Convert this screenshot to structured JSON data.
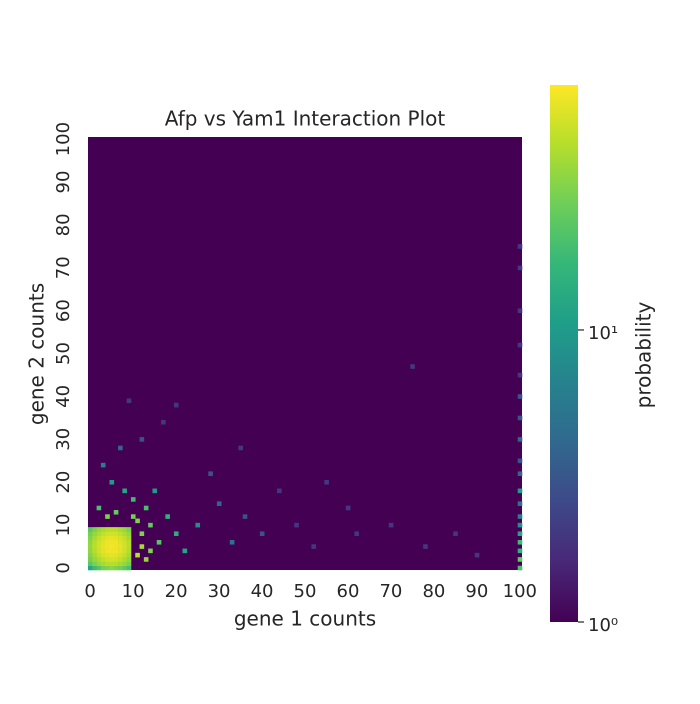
{
  "chart_data": {
    "type": "heatmap",
    "title": "Afp vs Yam1 Interaction Plot",
    "x_label": "gene 1 counts",
    "y_label": "gene 2 counts",
    "colorbar_label": "probability",
    "xlim": [
      -0.5,
      100.5
    ],
    "ylim": [
      -0.5,
      100.5
    ],
    "xticks": [
      0,
      10,
      20,
      30,
      40,
      50,
      60,
      70,
      80,
      90,
      100
    ],
    "yticks": [
      0,
      10,
      20,
      30,
      40,
      50,
      60,
      70,
      80,
      90,
      100
    ],
    "zlim": [
      1,
      69
    ],
    "zscale": "log",
    "zticks": [
      {
        "value": 1,
        "label": "10⁰"
      },
      {
        "value": 10,
        "label": "10¹"
      }
    ],
    "colormap": "viridis",
    "x": [
      0,
      1,
      2,
      3,
      4,
      5,
      6,
      7,
      8,
      9,
      0,
      1,
      2,
      3,
      4,
      5,
      6,
      7,
      8,
      9,
      0,
      1,
      2,
      3,
      4,
      5,
      6,
      7,
      8,
      9,
      0,
      1,
      2,
      3,
      4,
      5,
      6,
      7,
      8,
      9,
      0,
      1,
      2,
      3,
      4,
      5,
      6,
      7,
      8,
      9,
      0,
      1,
      2,
      3,
      4,
      5,
      6,
      7,
      8,
      9,
      0,
      1,
      2,
      3,
      4,
      5,
      6,
      7,
      8,
      9,
      0,
      1,
      2,
      3,
      4,
      5,
      6,
      7,
      8,
      9,
      0,
      1,
      2,
      3,
      4,
      5,
      6,
      7,
      8,
      9,
      0,
      1,
      2,
      3,
      4,
      5,
      6,
      7,
      8,
      9,
      12,
      14,
      16,
      18,
      20,
      13,
      10,
      8,
      15,
      22,
      25,
      5,
      3,
      7,
      12,
      17,
      9,
      20,
      30,
      33,
      28,
      36,
      40,
      35,
      44,
      48,
      52,
      55,
      60,
      62,
      70,
      75,
      78,
      85,
      90,
      11,
      12,
      13,
      14,
      11,
      4,
      6,
      2,
      10,
      100,
      100,
      100,
      100,
      100,
      100,
      100,
      100,
      100,
      100,
      100,
      100,
      100,
      100,
      100,
      100,
      100,
      100,
      100
    ],
    "y": [
      0,
      0,
      0,
      0,
      0,
      0,
      0,
      0,
      0,
      0,
      1,
      1,
      1,
      1,
      1,
      1,
      1,
      1,
      1,
      1,
      2,
      2,
      2,
      2,
      2,
      2,
      2,
      2,
      2,
      2,
      3,
      3,
      3,
      3,
      3,
      3,
      3,
      3,
      3,
      3,
      4,
      4,
      4,
      4,
      4,
      4,
      4,
      4,
      4,
      4,
      5,
      5,
      5,
      5,
      5,
      5,
      5,
      5,
      5,
      5,
      6,
      6,
      6,
      6,
      6,
      6,
      6,
      6,
      6,
      6,
      7,
      7,
      7,
      7,
      7,
      7,
      7,
      7,
      7,
      7,
      8,
      8,
      8,
      8,
      8,
      8,
      8,
      8,
      8,
      8,
      9,
      9,
      9,
      9,
      9,
      9,
      9,
      9,
      9,
      9,
      8,
      10,
      6,
      12,
      8,
      14,
      16,
      18,
      18,
      4,
      10,
      20,
      24,
      28,
      30,
      34,
      39,
      38,
      15,
      6,
      22,
      12,
      8,
      28,
      18,
      10,
      5,
      20,
      14,
      8,
      10,
      47,
      5,
      8,
      3,
      3,
      5,
      2,
      4,
      11,
      12,
      13,
      14,
      12,
      0,
      2,
      4,
      6,
      8,
      10,
      12,
      15,
      18,
      22,
      25,
      30,
      35,
      40,
      45,
      52,
      60,
      70,
      75
    ],
    "values": [
      12,
      18,
      22,
      28,
      30,
      33,
      30,
      28,
      24,
      20,
      23,
      29,
      35,
      39,
      43,
      44,
      43,
      39,
      35,
      29,
      28,
      35,
      41,
      47,
      51,
      52,
      51,
      47,
      41,
      35,
      31,
      39,
      47,
      53,
      57,
      59,
      57,
      53,
      47,
      39,
      34,
      43,
      51,
      57,
      62,
      63,
      62,
      57,
      51,
      43,
      35,
      44,
      52,
      59,
      63,
      65,
      63,
      59,
      52,
      44,
      34,
      43,
      51,
      57,
      62,
      63,
      62,
      57,
      51,
      43,
      31,
      39,
      47,
      53,
      57,
      59,
      57,
      53,
      47,
      39,
      28,
      35,
      41,
      47,
      51,
      52,
      51,
      47,
      41,
      35,
      23,
      29,
      35,
      39,
      43,
      44,
      43,
      39,
      35,
      29,
      30,
      25,
      22,
      15,
      14,
      20,
      18,
      12,
      10,
      12,
      8,
      10,
      6,
      4,
      3,
      2,
      2,
      2,
      4,
      5,
      3,
      3,
      3,
      2,
      2,
      2,
      2,
      2,
      2,
      2,
      2,
      2,
      2,
      2,
      2,
      45,
      40,
      35,
      30,
      30,
      30,
      25,
      20,
      28,
      20,
      25,
      15,
      18,
      12,
      8,
      6,
      5,
      10,
      4,
      3,
      4,
      3,
      3,
      2,
      2,
      2,
      2,
      2
    ]
  }
}
